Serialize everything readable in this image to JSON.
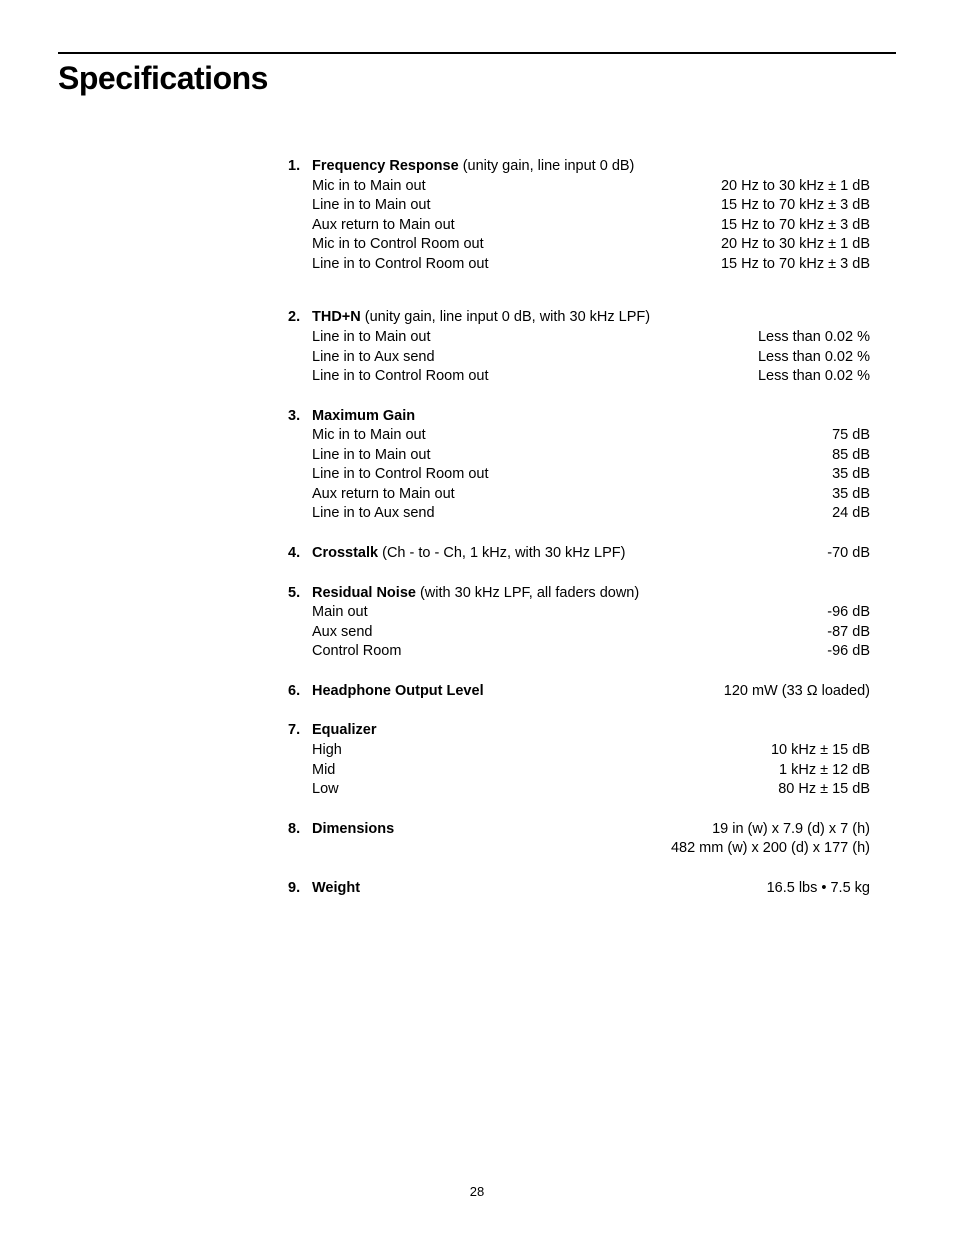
{
  "page_title": "Specifications",
  "page_number": "28",
  "sections": [
    {
      "num": "1.",
      "title": "Frequency Response",
      "note": " (unity gain, line input 0 dB)",
      "gap_after": "large",
      "rows": [
        {
          "label": "Mic in to Main out",
          "value": "20 Hz to 30 kHz ± 1 dB"
        },
        {
          "label": "Line in to Main out",
          "value": "15 Hz to 70 kHz ± 3 dB"
        },
        {
          "label": "Aux return to Main out",
          "value": "15 Hz to 70 kHz ± 3 dB"
        },
        {
          "label": "Mic in to Control Room out",
          "value": "20 Hz to 30 kHz ± 1 dB"
        },
        {
          "label": "Line in to Control Room out",
          "value": "15 Hz to 70 kHz ± 3 dB"
        }
      ]
    },
    {
      "num": "2.",
      "title": "THD+N",
      "note": " (unity gain, line input 0 dB, with 30 kHz LPF)",
      "rows": [
        {
          "label": "Line in to Main out",
          "value": "Less than 0.02 %"
        },
        {
          "label": "Line in to Aux send",
          "value": "Less than 0.02 %"
        },
        {
          "label": "Line in to Control Room out",
          "value": "Less than 0.02 %"
        }
      ]
    },
    {
      "num": "3.",
      "title": "Maximum Gain",
      "note": "",
      "rows": [
        {
          "label": "Mic in to Main out",
          "value": "75 dB"
        },
        {
          "label": "Line in to Main out",
          "value": "85 dB"
        },
        {
          "label": "Line in to Control Room out",
          "value": "35 dB"
        },
        {
          "label": "Aux return to Main out",
          "value": "35 dB"
        },
        {
          "label": "Line in to Aux send",
          "value": "24 dB"
        }
      ]
    },
    {
      "num": "4.",
      "title": "Crosstalk",
      "note": " (Ch - to - Ch, 1 kHz, with 30 kHz LPF)",
      "inline_value": "-70 dB",
      "rows": []
    },
    {
      "num": "5.",
      "title": "Residual Noise",
      "note": " (with 30 kHz LPF, all faders down)",
      "rows": [
        {
          "label": "Main out",
          "value": "-96 dB"
        },
        {
          "label": "Aux send",
          "value": "-87 dB"
        },
        {
          "label": "Control Room",
          "value": "-96 dB"
        }
      ]
    },
    {
      "num": "6.",
      "title": "Headphone Output Level",
      "note": "",
      "inline_value": "120 mW (33 Ω loaded)",
      "rows": []
    },
    {
      "num": "7.",
      "title": "Equalizer",
      "note": "",
      "rows": [
        {
          "label": "High",
          "value": "10 kHz ± 15 dB"
        },
        {
          "label": "Mid",
          "value": "1 kHz ± 12 dB"
        },
        {
          "label": "Low",
          "value": "80 Hz ± 15 dB"
        }
      ]
    },
    {
      "num": "8.",
      "title": "Dimensions",
      "note": "",
      "stack_values": [
        "19 in (w) x 7.9 (d) x 7 (h)",
        "482 mm (w) x  200 (d) x 177 (h)"
      ],
      "rows": []
    },
    {
      "num": "9.",
      "title": "Weight",
      "note": "",
      "inline_value": "16.5 lbs • 7.5 kg",
      "rows": []
    }
  ]
}
